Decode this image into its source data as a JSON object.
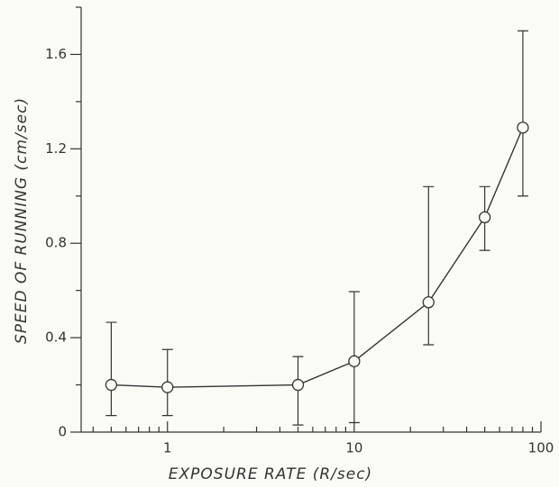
{
  "chart_data": {
    "type": "errorbar-line",
    "x_label": "EXPOSURE RATE  (R/sec)",
    "y_label": "SPEED OF RUNNING  (cm/sec)",
    "log_x": true,
    "x": [
      0.5,
      1,
      5,
      10,
      25,
      50,
      80
    ],
    "values": [
      0.2,
      0.19,
      0.2,
      0.3,
      0.55,
      0.91,
      1.29
    ],
    "lower": [
      0.07,
      0.07,
      0.03,
      0.04,
      0.37,
      0.77,
      1.0
    ],
    "upper": [
      0.465,
      0.35,
      0.32,
      0.595,
      1.04,
      1.04,
      1.7
    ],
    "color": "#333333",
    "xlim": [
      0.345,
      100
    ],
    "xticks": [
      1,
      10,
      100
    ],
    "xminor": [
      0.4,
      0.5,
      0.6,
      0.7,
      0.8,
      0.9,
      2,
      3,
      4,
      5,
      6,
      7,
      8,
      9,
      20,
      30,
      40,
      50,
      60,
      70,
      80,
      90
    ],
    "ylim": [
      0,
      1.8
    ],
    "yticks": [
      0,
      0.4,
      0.8,
      1.2,
      1.6
    ],
    "yminor": [
      0.2,
      0.6,
      1.0,
      1.4,
      1.8
    ]
  }
}
